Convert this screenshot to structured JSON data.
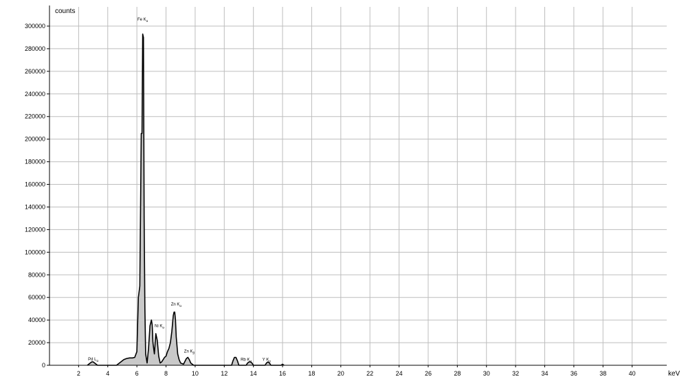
{
  "chart_data": {
    "type": "area",
    "title": "",
    "ylabel": "counts",
    "xlabel": "keV",
    "xlim": [
      0,
      42
    ],
    "ylim": [
      0,
      300000
    ],
    "grid": true,
    "x_ticks": [
      2,
      4,
      6,
      8,
      10,
      12,
      14,
      16,
      18,
      20,
      22,
      24,
      26,
      28,
      30,
      32,
      34,
      36,
      38,
      40
    ],
    "y_ticks": [
      0,
      20000,
      40000,
      60000,
      80000,
      100000,
      120000,
      140000,
      160000,
      180000,
      200000,
      220000,
      240000,
      260000,
      280000,
      300000
    ],
    "x_tick_labels": [
      "2",
      "4",
      "6",
      "8",
      "10",
      "12",
      "14",
      "16",
      "18",
      "20",
      "22",
      "24",
      "26",
      "28",
      "30",
      "32",
      "34",
      "36",
      "38",
      "40"
    ],
    "y_tick_labels": [
      "0",
      "20000",
      "40000",
      "60000",
      "80000",
      "100000",
      "120000",
      "140000",
      "160000",
      "180000",
      "200000",
      "220000",
      "240000",
      "260000",
      "280000",
      "300000"
    ],
    "series": [
      {
        "x": [
          2.6,
          2.8,
          2.9,
          3.0,
          3.1,
          3.3,
          4.6,
          4.9,
          5.1,
          5.3,
          5.5,
          5.7,
          5.85,
          6.0,
          6.1,
          6.2,
          6.3,
          6.35,
          6.4,
          6.45,
          6.5,
          6.55,
          6.6,
          6.7,
          6.8,
          6.9,
          7.0,
          7.05,
          7.1,
          7.2,
          7.3,
          7.4,
          7.5,
          7.6,
          7.7,
          7.8,
          7.9,
          8.0,
          8.1,
          8.2,
          8.3,
          8.4,
          8.5,
          8.55,
          8.6,
          8.65,
          8.7,
          8.8,
          8.9,
          9.0,
          9.2,
          9.4,
          9.5,
          9.6,
          9.7,
          9.9,
          10.2,
          12.5,
          12.6,
          12.7,
          12.8,
          12.9,
          13.0,
          13.5,
          13.6,
          13.7,
          13.8,
          13.9,
          14.0,
          14.8,
          14.9,
          15.0,
          15.1,
          15.2,
          15.9,
          16.0,
          16.1
        ],
        "values": [
          0,
          2000,
          3000,
          3000,
          2000,
          0,
          0,
          3000,
          5000,
          6000,
          6500,
          6500,
          7000,
          12000,
          60000,
          70000,
          205000,
          205000,
          293000,
          290000,
          130000,
          50000,
          10000,
          2000,
          15000,
          35000,
          40000,
          36000,
          20000,
          10000,
          28000,
          22000,
          8000,
          2000,
          3000,
          5000,
          7000,
          8000,
          12000,
          15000,
          20000,
          30000,
          44000,
          47000,
          47000,
          40000,
          25000,
          10000,
          5000,
          2000,
          1000,
          6000,
          7000,
          5000,
          2000,
          0,
          0,
          0,
          4000,
          7000,
          7000,
          4000,
          0,
          0,
          2000,
          3000,
          3000,
          2000,
          0,
          0,
          2000,
          3000,
          2000,
          0,
          0,
          1000,
          0
        ]
      }
    ],
    "annotations": [
      {
        "text": "Pd L",
        "sub": "α",
        "x": 3.0,
        "y": 2500
      },
      {
        "text": "Fe K",
        "sub": "α",
        "x": 6.4,
        "y": 303000
      },
      {
        "text": "Ni K",
        "sub": "α",
        "x": 7.55,
        "y": 32000
      },
      {
        "text": "Zn K",
        "sub": "α",
        "x": 8.7,
        "y": 51000
      },
      {
        "text": "Zn K",
        "sub": "β",
        "x": 9.6,
        "y": 9500
      },
      {
        "text": "Rb K",
        "sub": "α",
        "x": 13.5,
        "y": 2000
      },
      {
        "text": "Y K",
        "sub": "α",
        "x": 14.9,
        "y": 2000
      }
    ]
  },
  "colors": {
    "fill": "#c9c9c9",
    "line": "#000000",
    "grid": "#bdbdbd"
  }
}
